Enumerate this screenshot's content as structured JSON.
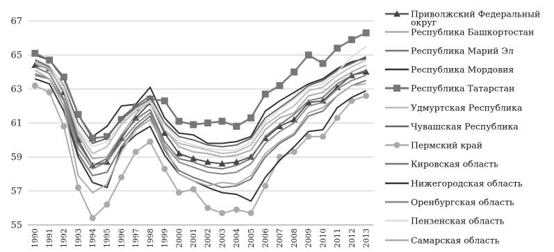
{
  "chart_data": {
    "type": "line",
    "title": "",
    "xlabel": "",
    "ylabel": "",
    "ylim": [
      55,
      67.5
    ],
    "yticks": [
      55,
      57,
      59,
      61,
      63,
      65,
      67
    ],
    "grid": "horizontal",
    "legend_position": "right",
    "x": [
      "1990",
      "1991",
      "1992",
      "1993",
      "1994",
      "1995",
      "1996",
      "1997",
      "1998",
      "1999",
      "2000",
      "2001",
      "2002",
      "2003",
      "2004",
      "2005",
      "2006",
      "2007",
      "2008",
      "2009",
      "2010",
      "2011",
      "2012",
      "2013"
    ],
    "series": [
      {
        "name": "Приволжский Федеральный округ",
        "color": "#555555",
        "marker": "triangle",
        "width": 2,
        "values": [
          64.4,
          64.2,
          62.8,
          60.0,
          58.5,
          58.7,
          60.1,
          61.3,
          62.2,
          60.4,
          59.2,
          58.9,
          58.7,
          58.6,
          58.7,
          59.0,
          60.1,
          60.8,
          61.2,
          62.2,
          62.3,
          63.1,
          63.8,
          64.0
        ]
      },
      {
        "name": "Республика Башкортостан",
        "color": "#aaaaaa",
        "marker": "none",
        "width": 2,
        "values": [
          64.5,
          64.1,
          62.9,
          60.3,
          58.9,
          59.0,
          60.3,
          61.5,
          62.5,
          60.6,
          59.6,
          59.3,
          59.2,
          59.0,
          59.1,
          59.4,
          60.6,
          61.3,
          61.6,
          62.6,
          62.8,
          63.5,
          64.0,
          64.4
        ]
      },
      {
        "name": "Республика Марий Эл",
        "color": "#777777",
        "marker": "none",
        "width": 2,
        "values": [
          63.8,
          63.6,
          62.0,
          59.2,
          57.9,
          58.1,
          59.6,
          60.7,
          61.4,
          59.4,
          58.2,
          57.8,
          57.5,
          57.2,
          57.3,
          57.7,
          59.0,
          59.8,
          60.3,
          61.4,
          61.7,
          62.6,
          63.2,
          63.5
        ]
      },
      {
        "name": "Республика Мордовия",
        "color": "#333333",
        "marker": "none",
        "width": 2,
        "values": [
          65.0,
          64.7,
          63.6,
          61.5,
          60.2,
          60.8,
          62.0,
          62.1,
          63.1,
          61.3,
          60.4,
          60.3,
          59.8,
          59.8,
          59.9,
          60.2,
          61.7,
          62.3,
          62.8,
          63.3,
          63.6,
          64.2,
          64.6,
          64.8
        ]
      },
      {
        "name": "Республика Татарстан",
        "color": "#777777",
        "marker": "square",
        "width": 2.5,
        "values": [
          65.1,
          64.7,
          63.7,
          61.5,
          60.1,
          60.2,
          61.2,
          61.9,
          62.4,
          62.3,
          61.1,
          60.9,
          61.0,
          61.1,
          60.8,
          61.3,
          62.7,
          63.2,
          64.0,
          65.0,
          64.5,
          65.4,
          65.9,
          66.3
        ]
      },
      {
        "name": "Удмуртская Республика",
        "color": "#bbbbbb",
        "marker": "none",
        "width": 2,
        "values": [
          64.6,
          64.2,
          62.9,
          60.5,
          59.2,
          59.6,
          60.9,
          61.7,
          62.2,
          60.6,
          59.8,
          59.6,
          59.4,
          59.2,
          59.3,
          59.7,
          60.9,
          61.5,
          62.0,
          62.9,
          63.1,
          63.8,
          64.3,
          64.7
        ]
      },
      {
        "name": "Чувашская Республика",
        "color": "#666666",
        "marker": "none",
        "width": 2,
        "values": [
          64.7,
          64.3,
          63.2,
          61.0,
          59.8,
          60.1,
          61.3,
          62.0,
          62.6,
          61.0,
          60.2,
          60.0,
          59.7,
          59.6,
          59.7,
          60.1,
          61.3,
          61.9,
          62.5,
          63.2,
          63.5,
          64.1,
          64.5,
          64.9
        ]
      },
      {
        "name": "Пермский край",
        "color": "#aaaaaa",
        "marker": "circle",
        "width": 2,
        "values": [
          63.2,
          62.8,
          60.8,
          57.2,
          55.4,
          56.2,
          57.8,
          59.3,
          59.9,
          58.3,
          56.9,
          57.1,
          56.0,
          55.7,
          55.9,
          55.7,
          57.3,
          59.0,
          59.3,
          60.2,
          60.2,
          61.3,
          62.3,
          62.6
        ]
      },
      {
        "name": "Кировская область",
        "color": "#777777",
        "marker": "none",
        "width": 2,
        "values": [
          64.3,
          63.9,
          62.4,
          59.8,
          58.5,
          58.9,
          60.2,
          61.2,
          61.8,
          59.9,
          58.9,
          58.7,
          58.4,
          58.3,
          58.5,
          58.9,
          60.2,
          60.9,
          61.5,
          62.3,
          62.5,
          63.3,
          63.8,
          64.1
        ]
      },
      {
        "name": "Нижегородская область",
        "color": "#333333",
        "marker": "none",
        "width": 2,
        "values": [
          63.6,
          63.3,
          61.7,
          59.0,
          57.5,
          57.2,
          59.5,
          60.3,
          60.8,
          59.1,
          58.0,
          57.6,
          57.2,
          56.9,
          56.8,
          56.4,
          57.8,
          58.8,
          59.6,
          60.5,
          60.6,
          61.9,
          62.5,
          62.9
        ]
      },
      {
        "name": "Оренбургская область",
        "color": "#888888",
        "marker": "none",
        "width": 2,
        "values": [
          63.9,
          63.6,
          62.3,
          59.5,
          58.3,
          58.7,
          59.9,
          60.9,
          61.6,
          59.7,
          58.7,
          58.4,
          58.1,
          58.0,
          58.1,
          58.6,
          59.8,
          60.5,
          61.0,
          62.0,
          62.2,
          63.0,
          63.5,
          63.8
        ]
      },
      {
        "name": "Пензенская область",
        "color": "#dddddd",
        "marker": "none",
        "width": 2,
        "values": [
          64.8,
          64.4,
          63.1,
          60.6,
          59.6,
          59.9,
          61.0,
          61.8,
          62.3,
          60.9,
          60.0,
          59.7,
          59.5,
          59.4,
          59.4,
          59.9,
          61.1,
          61.8,
          62.4,
          63.1,
          63.3,
          64.0,
          64.9,
          65.5
        ]
      },
      {
        "name": "Самарская область",
        "color": "#aaaaaa",
        "marker": "none",
        "width": 2,
        "values": [
          64.1,
          63.6,
          62.0,
          57.9,
          56.9,
          57.4,
          59.3,
          60.6,
          61.2,
          59.6,
          58.0,
          57.6,
          57.3,
          57.5,
          57.4,
          57.9,
          59.2,
          59.9,
          60.4,
          61.6,
          61.9,
          62.6,
          63.2,
          63.3
        ]
      }
    ]
  }
}
